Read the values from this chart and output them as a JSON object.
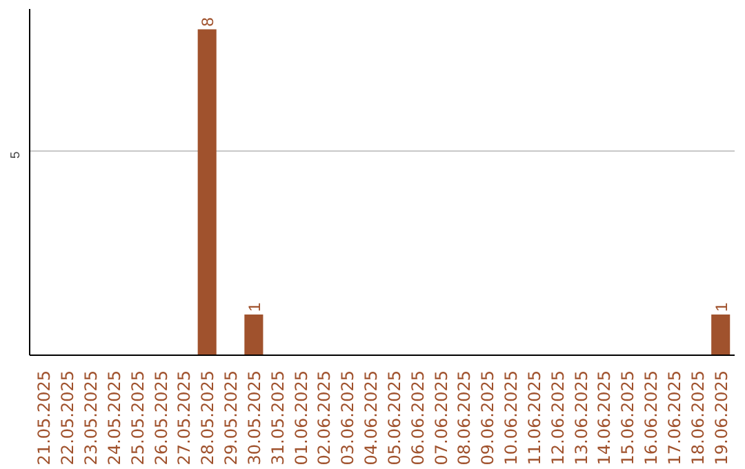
{
  "chart_data": {
    "type": "bar",
    "categories": [
      "21.05.2025",
      "22.05.2025",
      "23.05.2025",
      "24.05.2025",
      "25.05.2025",
      "26.05.2025",
      "27.05.2025",
      "28.05.2025",
      "29.05.2025",
      "30.05.2025",
      "31.05.2025",
      "01.06.2025",
      "02.06.2025",
      "03.06.2025",
      "04.06.2025",
      "05.06.2025",
      "06.06.2025",
      "07.06.2025",
      "08.06.2025",
      "09.06.2025",
      "10.06.2025",
      "11.06.2025",
      "12.06.2025",
      "13.06.2025",
      "14.06.2025",
      "15.06.2025",
      "16.06.2025",
      "17.06.2025",
      "18.06.2025",
      "19.06.2025"
    ],
    "values": [
      0,
      0,
      0,
      0,
      0,
      0,
      0,
      8,
      0,
      1,
      0,
      0,
      0,
      0,
      0,
      0,
      0,
      0,
      0,
      0,
      0,
      0,
      0,
      0,
      0,
      0,
      0,
      0,
      0,
      1
    ],
    "value_labels": [
      null,
      null,
      null,
      null,
      null,
      null,
      null,
      "8",
      null,
      "1",
      null,
      null,
      null,
      null,
      null,
      null,
      null,
      null,
      null,
      null,
      null,
      null,
      null,
      null,
      null,
      null,
      null,
      null,
      null,
      "1"
    ],
    "color": "#a0522d",
    "ylim": [
      0,
      8.5
    ],
    "yticks": [
      5
    ],
    "grid": "y"
  }
}
